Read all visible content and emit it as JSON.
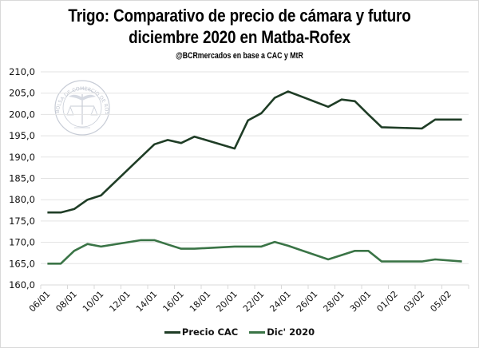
{
  "chart_data": {
    "type": "line",
    "title_line1": "Trigo: Comparativo de precio de cámara y futuro",
    "title_line2": "diciembre 2020 en Matba-Rofex",
    "subtitle": "@BCRmercados en base a CAC y MtR",
    "watermark": "BOLSA DE COMERCIO DE ROSARIO",
    "xlabel": "",
    "ylabel": "",
    "ylim": [
      160,
      210
    ],
    "yticks": [
      "160,0",
      "165,0",
      "170,0",
      "175,0",
      "180,0",
      "185,0",
      "190,0",
      "195,0",
      "200,0",
      "205,0",
      "210,0"
    ],
    "ytick_values": [
      160,
      165,
      170,
      175,
      180,
      185,
      190,
      195,
      200,
      205,
      210
    ],
    "xaxis_days": 32,
    "xtick_labels": [
      "06/01",
      "08/01",
      "10/01",
      "12/01",
      "14/01",
      "16/01",
      "18/01",
      "20/01",
      "22/01",
      "24/01",
      "26/01",
      "28/01",
      "30/01",
      "01/02",
      "03/02",
      "05/02"
    ],
    "grid": true,
    "legend_position": "bottom",
    "x": [
      "06/01",
      "07/01",
      "08/01",
      "09/01",
      "10/01",
      "13/01",
      "14/01",
      "15/01",
      "16/01",
      "17/01",
      "20/01",
      "21/01",
      "22/01",
      "23/01",
      "24/01",
      "27/01",
      "28/01",
      "29/01",
      "30/01",
      "31/01",
      "03/02",
      "04/02",
      "06/02"
    ],
    "x_day_index": [
      0,
      1,
      2,
      3,
      4,
      7,
      8,
      9,
      10,
      11,
      14,
      15,
      16,
      17,
      18,
      21,
      22,
      23,
      24,
      25,
      28,
      29,
      31
    ],
    "series": [
      {
        "name": "Precio CAC",
        "color": "#1f3d26",
        "values": [
          177.0,
          177.0,
          177.8,
          180.0,
          181.0,
          190.0,
          193.0,
          194.0,
          193.3,
          194.8,
          192.0,
          198.6,
          200.3,
          203.9,
          205.4,
          201.8,
          203.5,
          203.1,
          200.0,
          197.0,
          196.7,
          198.8,
          198.8
        ]
      },
      {
        "name": "Dic' 2020",
        "color": "#3a7446",
        "values": [
          165.0,
          165.0,
          168.0,
          169.6,
          169.0,
          170.5,
          170.5,
          169.5,
          168.5,
          168.5,
          169.0,
          169.0,
          169.0,
          170.1,
          169.2,
          166.0,
          167.0,
          168.0,
          168.0,
          165.5,
          165.5,
          166.0,
          165.5
        ]
      }
    ]
  }
}
